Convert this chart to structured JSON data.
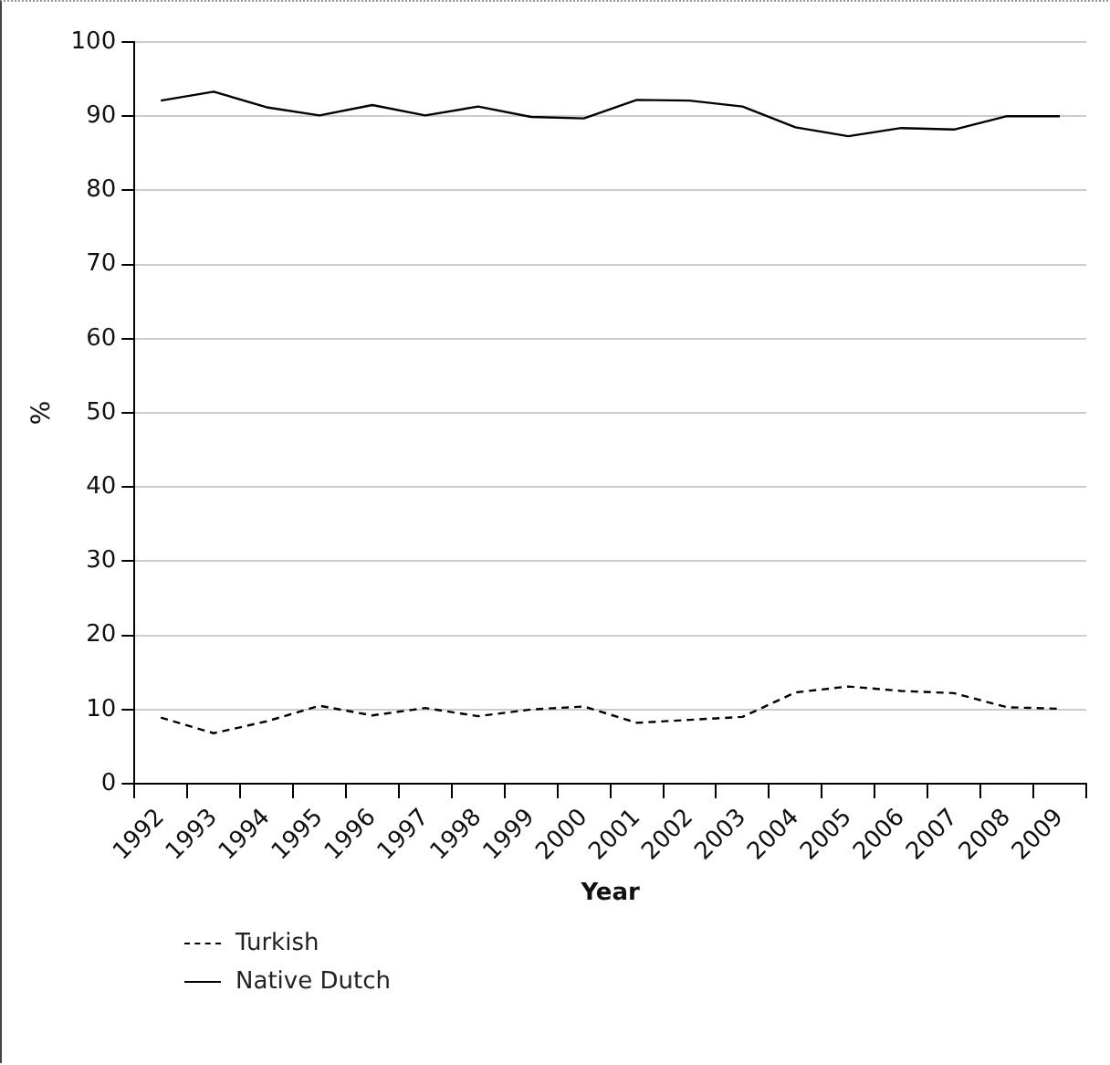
{
  "chart_data": {
    "type": "line",
    "xlabel": "Year",
    "ylabel": "%",
    "categories": [
      "1992",
      "1993",
      "1994",
      "1995",
      "1996",
      "1997",
      "1998",
      "1999",
      "2000",
      "2001",
      "2002",
      "2003",
      "2004",
      "2005",
      "2006",
      "2007",
      "2008",
      "2009"
    ],
    "series": [
      {
        "name": "Turkish",
        "color": "#000000",
        "line_style": "dashed",
        "values": [
          8.9,
          6.8,
          8.4,
          10.5,
          9.2,
          10.2,
          9.1,
          10,
          10.4,
          8.2,
          8.6,
          9,
          12.3,
          13.1,
          12.5,
          12.2,
          10.3,
          10.1
        ]
      },
      {
        "name": "Native Dutch",
        "color": "#000000",
        "line_style": "solid",
        "values": [
          92.1,
          93.3,
          91.2,
          90.1,
          91.5,
          90.1,
          91.3,
          89.9,
          89.7,
          92.2,
          92.1,
          91.3,
          88.5,
          87.3,
          88.4,
          88.2,
          90,
          90
        ]
      }
    ],
    "ylim": [
      0,
      100
    ],
    "yticks": [
      0,
      10,
      20,
      30,
      40,
      50,
      60,
      70,
      80,
      90,
      100
    ],
    "grid": "y",
    "legend": "bottom left",
    "marker": "none"
  }
}
